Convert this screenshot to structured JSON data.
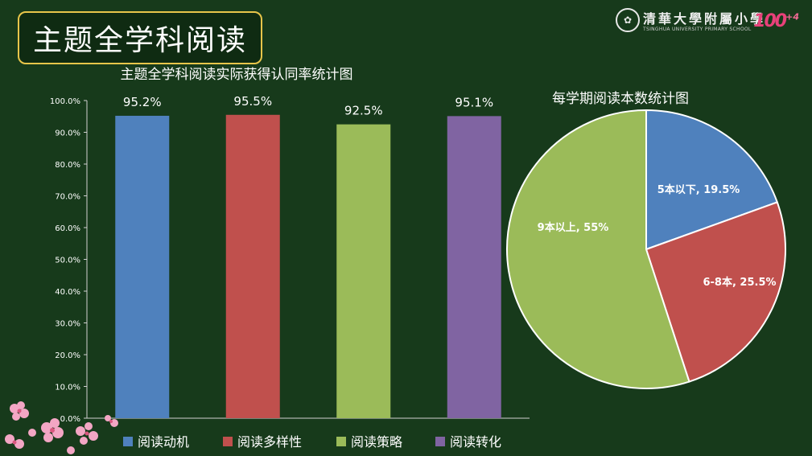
{
  "slide": {
    "title": "主题全学科阅读",
    "logo": {
      "school_cn": "清華大學附屬小學",
      "school_en": "TSINGHUA UNIVERSITY PRIMARY SCHOOL",
      "anniversary": "100",
      "anniversary_sup": "+4"
    }
  },
  "chart_data": [
    {
      "type": "bar",
      "title": "主题全学科阅读实际获得认同率统计图",
      "categories": [
        "阅读动机",
        "阅读多样性",
        "阅读策略",
        "阅读转化"
      ],
      "values": [
        95.2,
        95.5,
        92.5,
        95.1
      ],
      "value_labels": [
        "95.2%",
        "95.5%",
        "92.5%",
        "95.1%"
      ],
      "colors": [
        "#4f81bd",
        "#c0504d",
        "#9bbb59",
        "#8064a2"
      ],
      "ylim": [
        0,
        100
      ],
      "yticks": [
        "0.0%",
        "10.0%",
        "20.0%",
        "30.0%",
        "40.0%",
        "50.0%",
        "60.0%",
        "70.0%",
        "80.0%",
        "90.0%",
        "100.0%"
      ],
      "grid": false,
      "legend": "bottom"
    },
    {
      "type": "pie",
      "title": "每学期阅读本数统计图",
      "labels": [
        "5本以下",
        "6-8本",
        "9本以上"
      ],
      "values": [
        19.5,
        25.5,
        55
      ],
      "slice_labels": [
        "5本以下, 19.5%",
        "6-8本, 25.5%",
        "9本以上, 55%"
      ],
      "colors": [
        "#4f81bd",
        "#c0504d",
        "#9bbb59"
      ]
    }
  ]
}
